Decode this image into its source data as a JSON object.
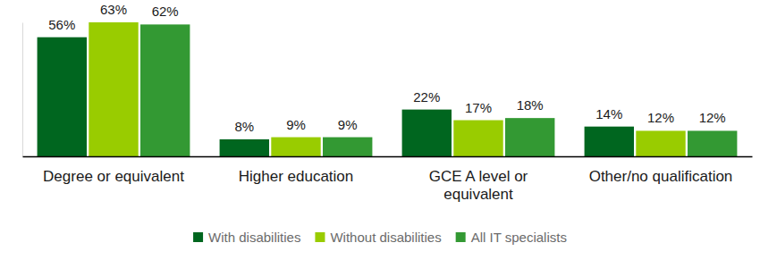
{
  "chart_data": {
    "type": "bar",
    "categories": [
      "Degree or equivalent",
      "Higher education",
      "GCE A level or equivalent",
      "Other/no qualification"
    ],
    "series": [
      {
        "name": "With disabilities",
        "color": "#00661f",
        "values": [
          56,
          8,
          22,
          14
        ],
        "value_labels": [
          "56%",
          "8%",
          "22%",
          "14%"
        ]
      },
      {
        "name": "Without disabilities",
        "color": "#99cc00",
        "values": [
          63,
          9,
          17,
          12
        ],
        "value_labels": [
          "63%",
          "9%",
          "17%",
          "12%"
        ]
      },
      {
        "name": "All IT specialists",
        "color": "#339933",
        "values": [
          62,
          9,
          18,
          12
        ],
        "value_labels": [
          "62%",
          "9%",
          "18%",
          "12%"
        ]
      }
    ],
    "ylim": [
      0,
      63
    ],
    "grid": false,
    "legend": "bottom",
    "data_labels": true,
    "tick_labels": "x"
  }
}
